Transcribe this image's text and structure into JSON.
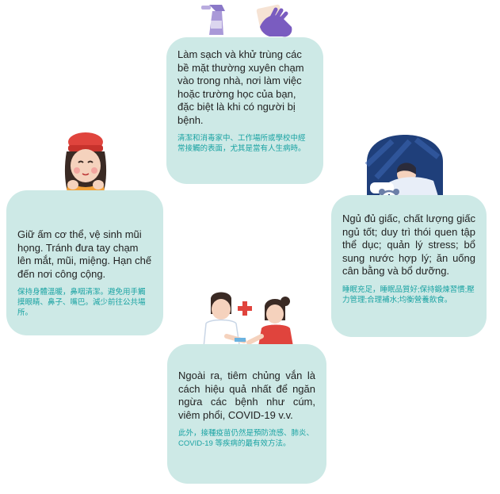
{
  "cards": {
    "top": {
      "vi": "Làm sạch và khử trùng các bề mặt thường xuyên chạm vào trong nhà, nơi làm việc hoặc trường học của bạn, đặc biệt là khi có người bị bệnh.",
      "zh": "清潔和消毒家中、工作場所或學校中經常接觸的表面，尤其是當有人生病時。"
    },
    "left": {
      "vi": "Giữ ấm cơ thể, vệ sinh mũi họng. Tránh đưa tay chạm lên mắt, mũi, miệng. Hạn chế đến nơi công cộng.",
      "zh": "保持身體溫暖，鼻咽清潔。避免用手觸摸眼睛、鼻子、嘴巴。減少前往公共場所。"
    },
    "right": {
      "vi": "Ngủ đủ giấc, chất lượng giấc ngủ tốt; duy trì thói quen tập thể dục; quản lý stress; bổ sung nước hợp lý; ăn uống cân bằng và bổ dưỡng.",
      "zh": "睡眠充足，睡眠品質好;保持鍛煉習慣;壓力管理;合理補水;均衡營養飲食。"
    },
    "bottom": {
      "vi": "Ngoài ra, tiêm chủng vắn là cách hiệu quả nhất để ngăn ngừa các bệnh như cúm, viêm phổi, COVID-19 v.v.",
      "zh": "此外，接種疫苗仍然是預防流感、肺炎、COVID-19 等疾病的最有效方法。"
    }
  },
  "colors": {
    "card_bg": "#cde9e6",
    "body_text": "#222222",
    "chinese_text": "#1aa3a3"
  },
  "icons": [
    "spray-bottle-icon",
    "gloved-hand-cloth-icon",
    "girl-with-scarf-icon",
    "sleeping-person-icon",
    "alarm-clock-icon",
    "nurse-icon",
    "red-cross-icon",
    "child-patient-icon"
  ]
}
